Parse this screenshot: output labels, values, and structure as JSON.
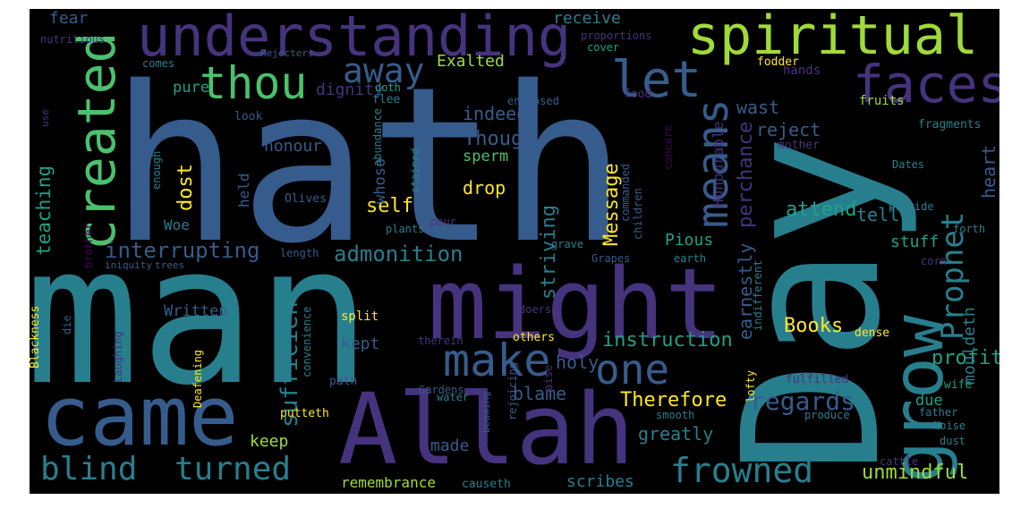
{
  "palette": {
    "p1": "#46337e",
    "p2": "#365c8d",
    "p3": "#277f8e",
    "p4": "#1fa187",
    "p5": "#4ac16d",
    "p6": "#a0da39",
    "p7": "#fde725",
    "p8": "#440154"
  },
  "words": [
    {
      "text": "hath",
      "color": "p2"
    },
    {
      "text": "man",
      "color": "p3"
    },
    {
      "text": "Day",
      "color": "p3"
    },
    {
      "text": "might",
      "color": "p1"
    },
    {
      "text": "Allah",
      "color": "p1"
    },
    {
      "text": "came",
      "color": "p2"
    },
    {
      "text": "understanding",
      "color": "p1"
    },
    {
      "text": "spiritual",
      "color": "p6"
    },
    {
      "text": "created",
      "color": "p5"
    },
    {
      "text": "grow",
      "color": "p3"
    },
    {
      "text": "faces",
      "color": "p1"
    },
    {
      "text": "thou",
      "color": "p5"
    },
    {
      "text": "let",
      "color": "p2"
    },
    {
      "text": "means",
      "color": "p2"
    },
    {
      "text": "away",
      "color": "p2"
    },
    {
      "text": "make",
      "color": "p2"
    },
    {
      "text": "one",
      "color": "p2"
    },
    {
      "text": "blind",
      "color": "p3"
    },
    {
      "text": "turned",
      "color": "p3"
    },
    {
      "text": "frowned",
      "color": "p3"
    },
    {
      "text": "Prophet",
      "color": "p3"
    },
    {
      "text": "Allah",
      "color": "p1"
    },
    {
      "text": "sufficient",
      "color": "p3"
    },
    {
      "text": "admonition",
      "color": "p3"
    },
    {
      "text": "interrupting",
      "color": "p2"
    },
    {
      "text": "teaching",
      "color": "p4"
    },
    {
      "text": "instruction",
      "color": "p4"
    },
    {
      "text": "regards",
      "color": "p2"
    },
    {
      "text": "unmindful",
      "color": "p6"
    },
    {
      "text": "Therefore",
      "color": "p7"
    },
    {
      "text": "Books",
      "color": "p7"
    },
    {
      "text": "profit",
      "color": "p4"
    },
    {
      "text": "heart",
      "color": "p2"
    },
    {
      "text": "perchance",
      "color": "p1"
    },
    {
      "text": "earnestly",
      "color": "p2"
    },
    {
      "text": "Honourable",
      "color": "p1"
    },
    {
      "text": "Message",
      "color": "p7"
    },
    {
      "text": "striving",
      "color": "p3"
    },
    {
      "text": "Though",
      "color": "p2"
    },
    {
      "text": "self",
      "color": "p7"
    },
    {
      "text": "drop",
      "color": "p7"
    },
    {
      "text": "indeed",
      "color": "p2"
    },
    {
      "text": "dignity",
      "color": "p1"
    },
    {
      "text": "Exalted",
      "color": "p6"
    },
    {
      "text": "receive",
      "color": "p3"
    },
    {
      "text": "fear",
      "color": "p2"
    },
    {
      "text": "honour",
      "color": "p2"
    },
    {
      "text": "pure",
      "color": "p4"
    },
    {
      "text": "dost",
      "color": "p7"
    },
    {
      "text": "attend",
      "color": "p4"
    },
    {
      "text": "tell",
      "color": "p3"
    },
    {
      "text": "wast",
      "color": "p2"
    },
    {
      "text": "reject",
      "color": "p2"
    },
    {
      "text": "mouldeth",
      "color": "p3"
    },
    {
      "text": "stuff",
      "color": "p4"
    },
    {
      "text": "Pious",
      "color": "p4"
    },
    {
      "text": "greatly",
      "color": "p3"
    },
    {
      "text": "blame",
      "color": "p2"
    },
    {
      "text": "holy",
      "color": "p2"
    },
    {
      "text": "kept",
      "color": "p2"
    },
    {
      "text": "keep",
      "color": "p6"
    },
    {
      "text": "made",
      "color": "p2"
    },
    {
      "text": "scribes",
      "color": "p3"
    },
    {
      "text": "remembrance",
      "color": "p6"
    },
    {
      "text": "Written",
      "color": "p2"
    },
    {
      "text": "due",
      "color": "p4"
    },
    {
      "text": "Woe",
      "color": "p3"
    },
    {
      "text": "held",
      "color": "p2"
    },
    {
      "text": "whoso",
      "color": "p2"
    },
    {
      "text": "sperm",
      "color": "p5"
    },
    {
      "text": "split",
      "color": "p7"
    },
    {
      "text": "others",
      "color": "p7"
    },
    {
      "text": "dense",
      "color": "p7"
    },
    {
      "text": "causeth",
      "color": "p3"
    },
    {
      "text": "nutritious",
      "color": "p1"
    },
    {
      "text": "comes",
      "color": "p3"
    },
    {
      "text": "Rejecters",
      "color": "p2"
    },
    {
      "text": "proportions",
      "color": "p1"
    },
    {
      "text": "cover",
      "color": "p4"
    },
    {
      "text": "fodder",
      "color": "p7"
    },
    {
      "text": "hands",
      "color": "p1"
    },
    {
      "text": "doth",
      "color": "p4"
    },
    {
      "text": "flee",
      "color": "p3"
    },
    {
      "text": "food",
      "color": "p1"
    },
    {
      "text": "look",
      "color": "p2"
    },
    {
      "text": "enclosed",
      "color": "p2"
    },
    {
      "text": "fruits",
      "color": "p6"
    },
    {
      "text": "fragments",
      "color": "p3"
    },
    {
      "text": "use",
      "color": "p1"
    },
    {
      "text": "abundance",
      "color": "p3"
    },
    {
      "text": "concern",
      "color": "p8"
    },
    {
      "text": "mother",
      "color": "p1"
    },
    {
      "text": "enough",
      "color": "p3"
    },
    {
      "text": "stained",
      "color": "p3"
    },
    {
      "text": "commanded",
      "color": "p2"
    },
    {
      "text": "Dates",
      "color": "p3"
    },
    {
      "text": "Olives",
      "color": "p2"
    },
    {
      "text": "pour",
      "color": "p1"
    },
    {
      "text": "children",
      "color": "p2"
    },
    {
      "text": "provide",
      "color": "p3"
    },
    {
      "text": "brother",
      "color": "p8"
    },
    {
      "text": "plants",
      "color": "p3"
    },
    {
      "text": "forth",
      "color": "p3"
    },
    {
      "text": "grave",
      "color": "p3"
    },
    {
      "text": "iniquity",
      "color": "p2"
    },
    {
      "text": "trees",
      "color": "p2"
    },
    {
      "text": "length",
      "color": "p2"
    },
    {
      "text": "Grapes",
      "color": "p2"
    },
    {
      "text": "earth",
      "color": "p3"
    },
    {
      "text": "indifferent",
      "color": "p3"
    },
    {
      "text": "corn",
      "color": "p1"
    },
    {
      "text": "Blackness",
      "color": "p7"
    },
    {
      "text": "die",
      "color": "p2"
    },
    {
      "text": "Laughing",
      "color": "p1"
    },
    {
      "text": "Deafening",
      "color": "p7"
    },
    {
      "text": "convenience",
      "color": "p3"
    },
    {
      "text": "therein",
      "color": "p1"
    },
    {
      "text": "doers",
      "color": "p1"
    },
    {
      "text": "path",
      "color": "p2"
    },
    {
      "text": "raise",
      "color": "p1"
    },
    {
      "text": "lofty",
      "color": "p7"
    },
    {
      "text": "Gardens",
      "color": "p2"
    },
    {
      "text": "fulfilled",
      "color": "p1"
    },
    {
      "text": "wife",
      "color": "p4"
    },
    {
      "text": "putteth",
      "color": "p7"
    },
    {
      "text": "water",
      "color": "p3"
    },
    {
      "text": "rejoicing",
      "color": "p2"
    },
    {
      "text": "beaming",
      "color": "p2"
    },
    {
      "text": "cattle",
      "color": "p1"
    },
    {
      "text": "smooth",
      "color": "p3"
    },
    {
      "text": "produce",
      "color": "p3"
    },
    {
      "text": "father",
      "color": "p3"
    },
    {
      "text": "Noise",
      "color": "p3"
    },
    {
      "text": "dust",
      "color": "p3"
    }
  ]
}
